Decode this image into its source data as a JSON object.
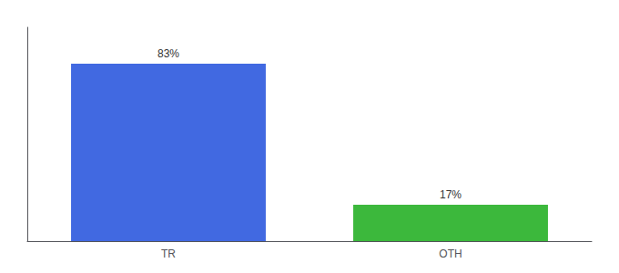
{
  "chart_data": {
    "type": "bar",
    "categories": [
      "TR",
      "OTH"
    ],
    "values": [
      83,
      17
    ],
    "value_labels": [
      "83%",
      "17%"
    ],
    "data_labels": true,
    "colors": [
      "#4169e1",
      "#3cb83c"
    ],
    "ylim": [
      0,
      100
    ],
    "grid": false,
    "tick_labels": "x"
  }
}
